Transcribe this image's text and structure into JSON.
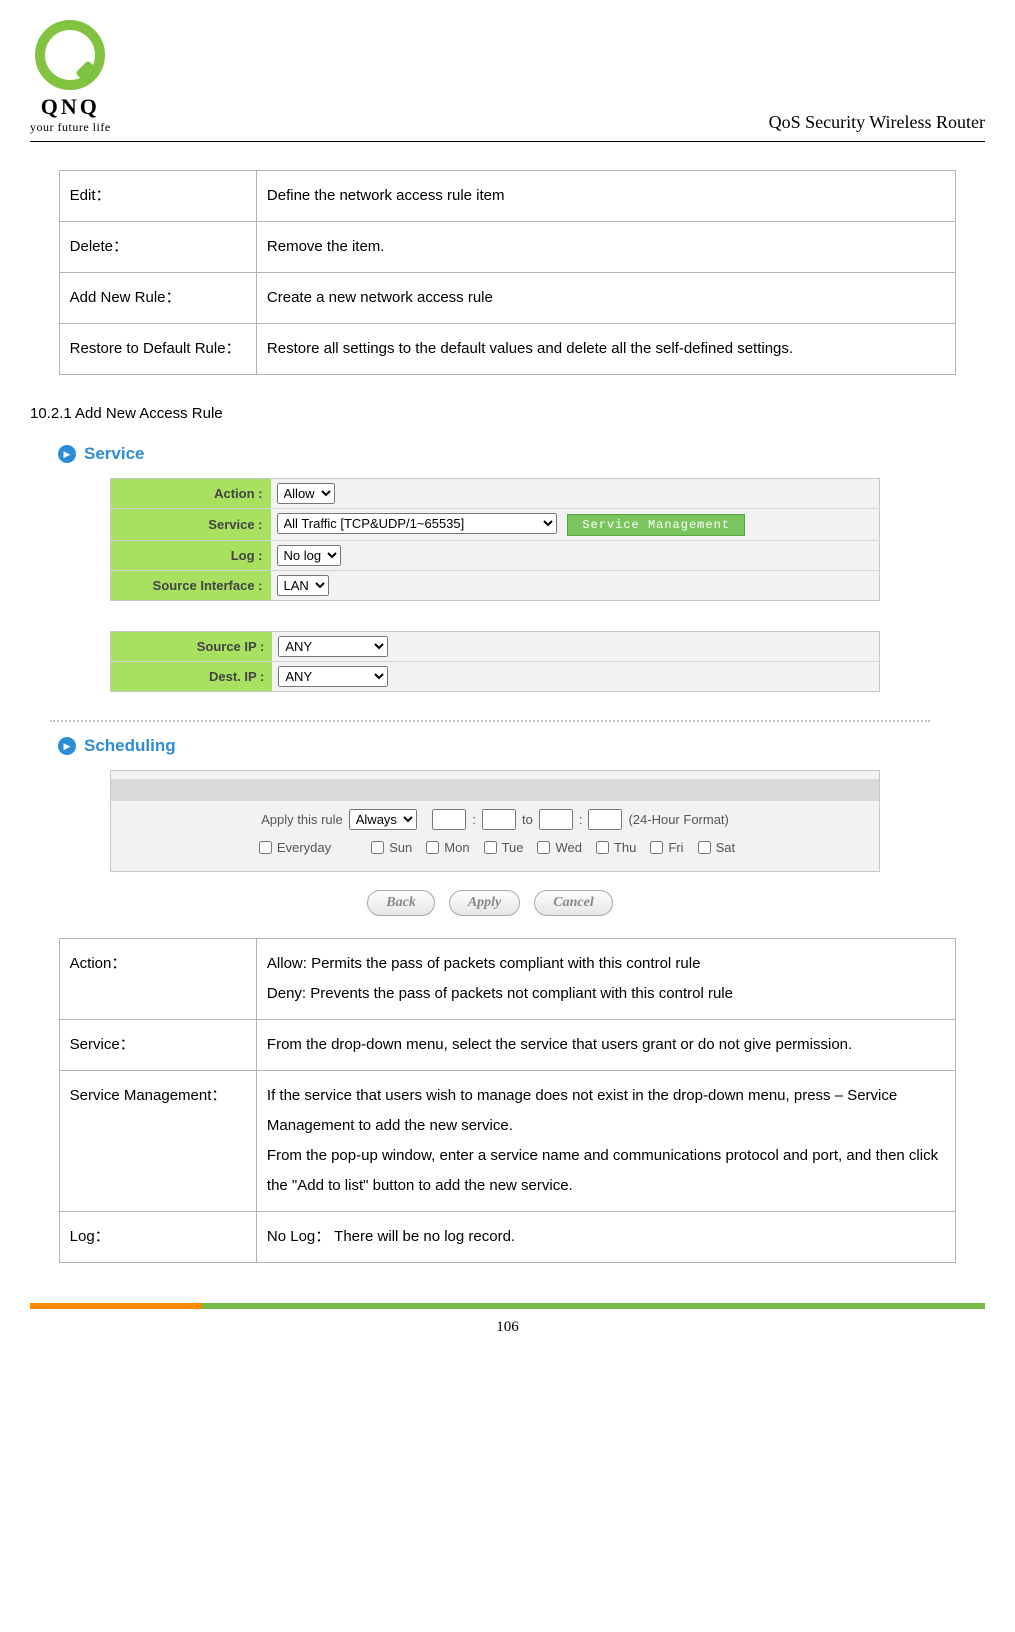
{
  "header": {
    "logo_text": "QNQ",
    "logo_tagline": "your future life",
    "document_title": "QoS Security Wireless Router"
  },
  "table1": {
    "rows": [
      {
        "label": "Edit：",
        "desc": "Define the network access rule item"
      },
      {
        "label": "Delete：",
        "desc": "Remove the item."
      },
      {
        "label": "Add New Rule：",
        "desc": "Create a new network access rule"
      },
      {
        "label": "Restore to Default Rule：",
        "desc": "Restore all settings to the default values and delete all the self-defined settings."
      }
    ]
  },
  "section_heading": "10.2.1   Add New Access Rule",
  "ui": {
    "service_section_title": "Service",
    "scheduling_section_title": "Scheduling",
    "labels": {
      "action": "Action :",
      "service": "Service :",
      "log": "Log :",
      "source_interface": "Source Interface :",
      "source_ip": "Source IP :",
      "dest_ip": "Dest. IP :",
      "apply_rule": "Apply this rule",
      "to": "to",
      "hour_format": "(24-Hour Format)",
      "everyday": "Everyday",
      "days": [
        "Sun",
        "Mon",
        "Tue",
        "Wed",
        "Thu",
        "Fri",
        "Sat"
      ]
    },
    "values": {
      "action": "Allow",
      "service": "All Traffic [TCP&UDP/1~65535]",
      "log": "No log",
      "source_interface": "LAN",
      "source_ip": "ANY",
      "dest_ip": "ANY",
      "apply_rule": "Always"
    },
    "buttons": {
      "service_management": "Service Management",
      "back": "Back",
      "apply": "Apply",
      "cancel": "Cancel"
    }
  },
  "table2": {
    "rows": [
      {
        "label": "Action：",
        "desc": "Allow: Permits the pass of packets compliant with this control rule\nDeny: Prevents the pass of packets not compliant with this control rule"
      },
      {
        "label": "Service：",
        "desc": "From the drop-down menu, select the service that users grant or do not give permission."
      },
      {
        "label": "Service Management：",
        "desc": "If the service that users wish to manage does not exist in the drop-down menu, press – Service Management to add the new service.\nFrom the pop-up window, enter a service name and communications protocol and port, and then click the \"Add to list\" button to add the new service."
      },
      {
        "label": "Log：",
        "desc": "No Log：  There will be no log record."
      }
    ]
  },
  "page_number": "106"
}
